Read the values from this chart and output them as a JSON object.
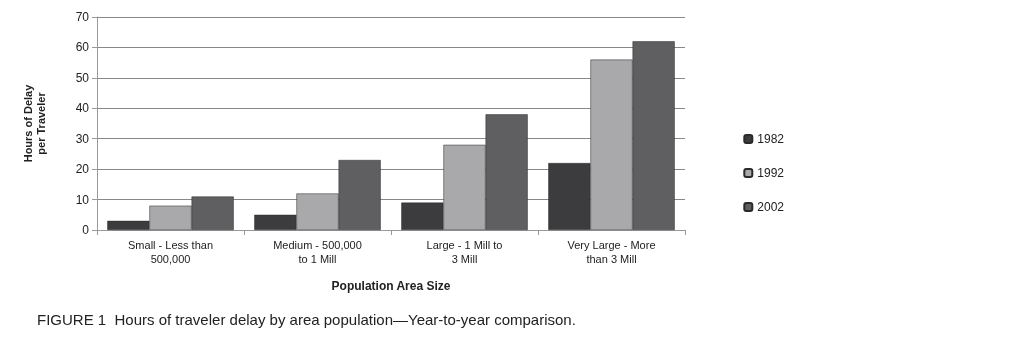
{
  "chart_data": {
    "type": "bar",
    "categories": [
      "Small - Less than\n500,000",
      "Medium - 500,000\nto 1 Mill",
      "Large - 1 Mill to\n3 Mill",
      "Very Large - More\nthan 3 Mill"
    ],
    "series": [
      {
        "name": "1982",
        "color": "#3c3c3e",
        "values": [
          3,
          5,
          9,
          22
        ]
      },
      {
        "name": "1992",
        "color": "#a9a9ab",
        "values": [
          8,
          12,
          28,
          56
        ]
      },
      {
        "name": "2002",
        "color": "#5f5f61",
        "values": [
          11,
          23,
          38,
          62
        ]
      }
    ],
    "xlabel": "Population Area Size",
    "ylabel": "Hours of Delay\nper Traveler",
    "ylim": [
      0,
      70
    ],
    "yticks": [
      0,
      10,
      20,
      30,
      40,
      50,
      60,
      70
    ],
    "grid": "y",
    "legend": "right",
    "annotations": [
      "FIGURE 1  Hours of traveler delay by area population—Year-to-year comparison."
    ]
  }
}
